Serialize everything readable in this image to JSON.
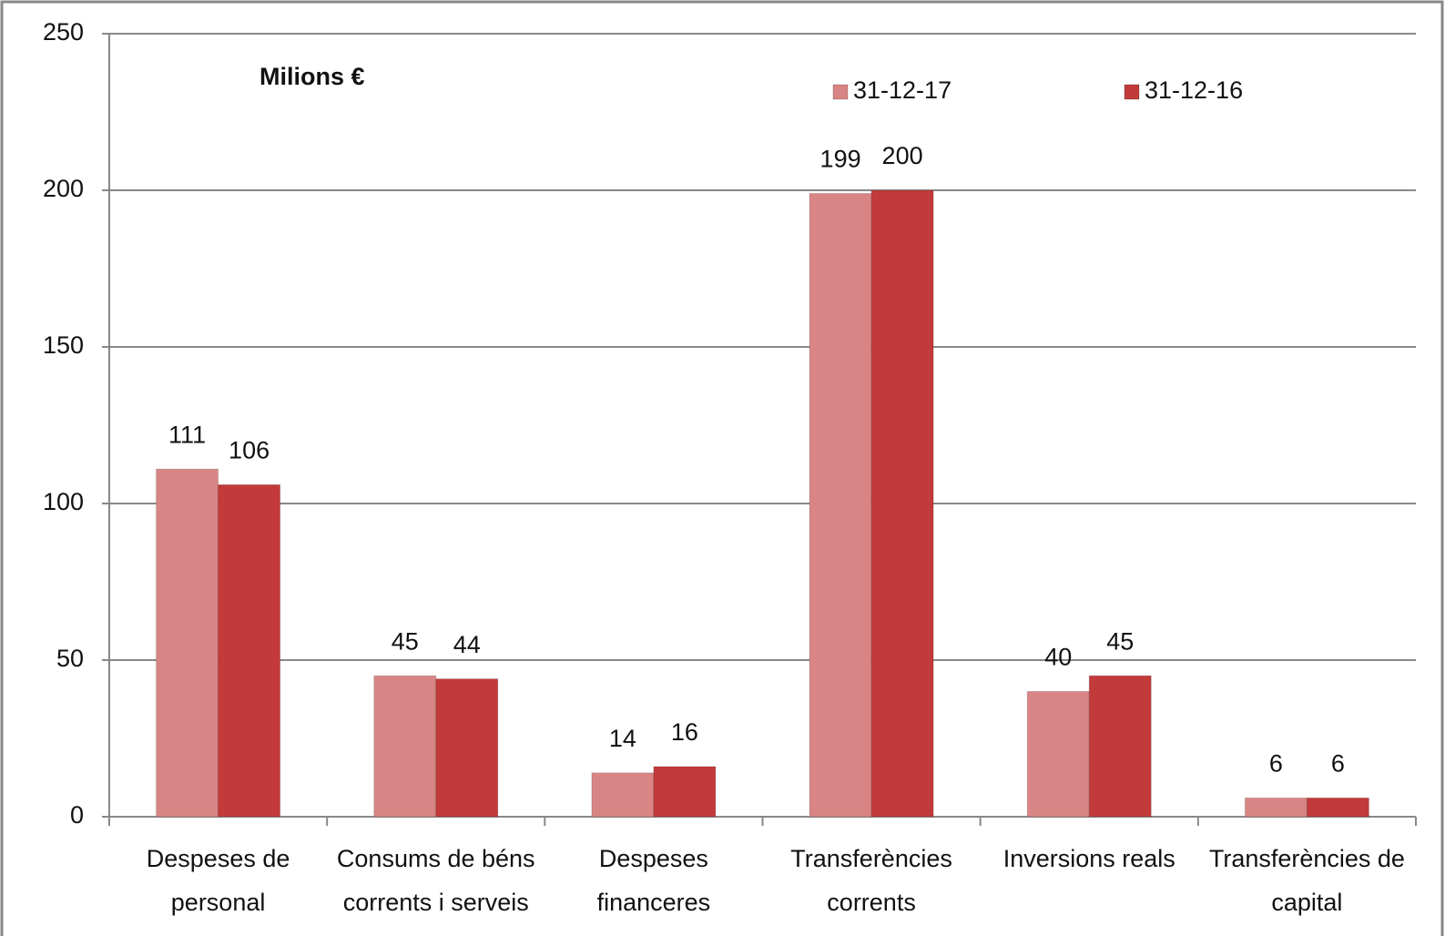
{
  "chart_data": {
    "type": "bar",
    "annotation": "Milions €",
    "categories": [
      "Despeses de personal",
      "Consums de béns corrents i serveis",
      "Despeses financeres",
      "Transferències corrents",
      "Inversions reals",
      "Transferències de capital"
    ],
    "series": [
      {
        "name": "31-12-17",
        "color": "#d98585",
        "values": [
          111,
          45,
          14,
          199,
          40,
          6
        ]
      },
      {
        "name": "31-12-16",
        "color": "#c23a3a",
        "values": [
          106,
          44,
          16,
          200,
          45,
          6
        ]
      }
    ],
    "ylim": [
      0,
      250
    ],
    "yticks": [
      0,
      50,
      100,
      150,
      200,
      250
    ],
    "grid": true,
    "legend": "top"
  }
}
